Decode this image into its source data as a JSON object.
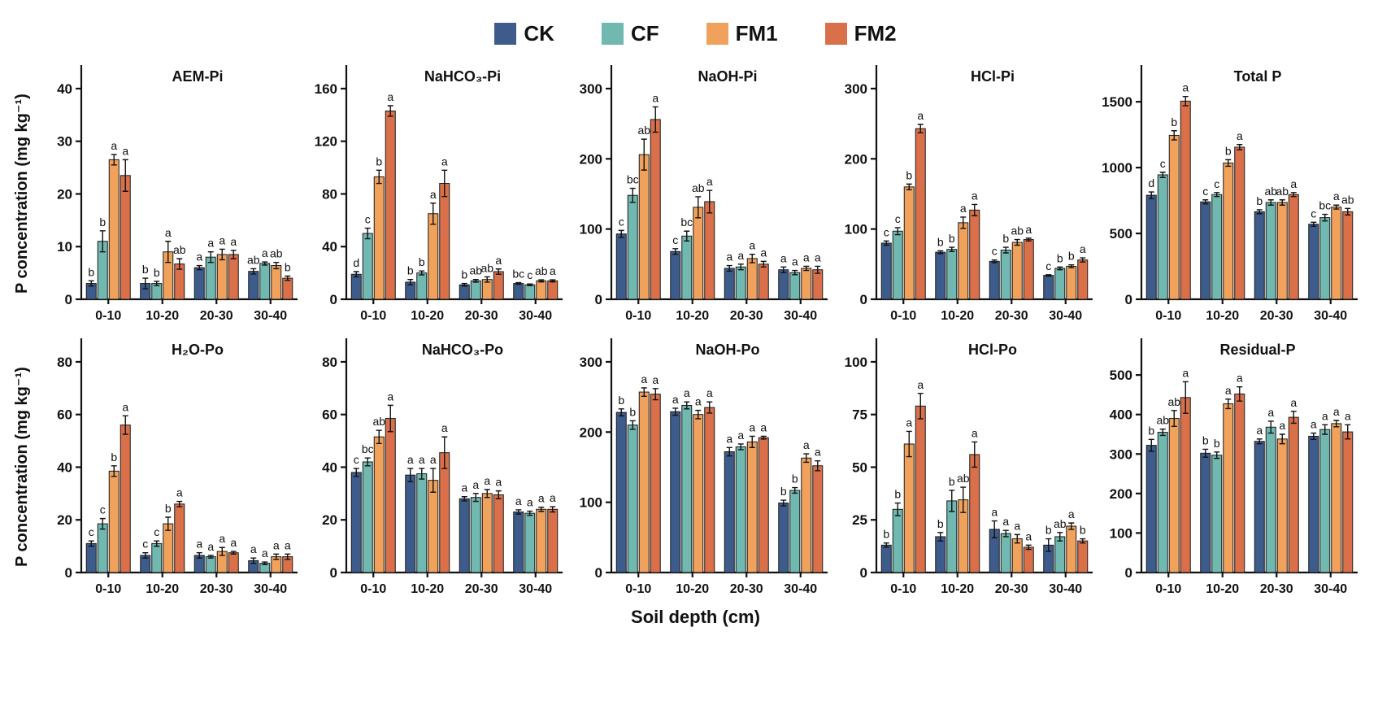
{
  "legend": {
    "items": [
      {
        "label": "CK",
        "color": "#3d5c8b"
      },
      {
        "label": "CF",
        "color": "#70b8b0"
      },
      {
        "label": "FM1",
        "color": "#f0a25c"
      },
      {
        "label": "FM2",
        "color": "#d9704a"
      }
    ]
  },
  "ylabel": "P concentration (mg kg⁻¹)",
  "xlabel": "Soil depth (cm)",
  "chart_data": [
    {
      "type": "bar",
      "title": "AEM-Pi",
      "row": 1,
      "categories": [
        "0-10",
        "10-20",
        "20-30",
        "30-40"
      ],
      "ylim": [
        0,
        42
      ],
      "yticks": [
        0,
        10,
        20,
        30,
        40
      ],
      "series": [
        {
          "name": "CK",
          "values": [
            3,
            3,
            6,
            5.3
          ],
          "errors": [
            0.5,
            1,
            0.4,
            0.5
          ],
          "letters": [
            "b",
            "b",
            "a",
            "ab"
          ]
        },
        {
          "name": "CF",
          "values": [
            11,
            3,
            8,
            6.8
          ],
          "errors": [
            2,
            0.4,
            1,
            0.3
          ],
          "letters": [
            "b",
            "b",
            "a",
            "a"
          ]
        },
        {
          "name": "FM1",
          "values": [
            26.5,
            9,
            8.5,
            6.4
          ],
          "errors": [
            1,
            2,
            1,
            0.6
          ],
          "letters": [
            "a",
            "a",
            "a",
            "ab"
          ]
        },
        {
          "name": "FM2",
          "values": [
            23.5,
            6.7,
            8.5,
            4
          ],
          "errors": [
            3,
            1,
            0.8,
            0.4
          ],
          "letters": [
            "a",
            "ab",
            "a",
            "b"
          ]
        }
      ]
    },
    {
      "type": "bar",
      "title": "NaHCO₃-Pi",
      "row": 1,
      "categories": [
        "0-10",
        "10-20",
        "20-30",
        "30-40"
      ],
      "ylim": [
        0,
        168
      ],
      "yticks": [
        0,
        40,
        80,
        120,
        160
      ],
      "series": [
        {
          "name": "CK",
          "values": [
            19,
            13,
            11,
            12
          ],
          "errors": [
            2,
            2,
            1,
            0.6
          ],
          "letters": [
            "d",
            "b",
            "b",
            "bc"
          ]
        },
        {
          "name": "CF",
          "values": [
            50,
            20,
            14,
            11
          ],
          "errors": [
            4,
            1.5,
            1,
            0.6
          ],
          "letters": [
            "c",
            "b",
            "ab",
            "c"
          ]
        },
        {
          "name": "FM1",
          "values": [
            93,
            65,
            15,
            14
          ],
          "errors": [
            5,
            8,
            2,
            0.8
          ],
          "letters": [
            "b",
            "a",
            "ab",
            "ab"
          ]
        },
        {
          "name": "FM2",
          "values": [
            143,
            88,
            21,
            14
          ],
          "errors": [
            4,
            10,
            2,
            0.8
          ],
          "letters": [
            "a",
            "a",
            "a",
            "a"
          ]
        }
      ]
    },
    {
      "type": "bar",
      "title": "NaOH-Pi",
      "row": 1,
      "categories": [
        "0-10",
        "10-20",
        "20-30",
        "30-40"
      ],
      "ylim": [
        0,
        315
      ],
      "yticks": [
        0,
        100,
        200,
        300
      ],
      "series": [
        {
          "name": "CK",
          "values": [
            93,
            68,
            44,
            42
          ],
          "errors": [
            5,
            4,
            4,
            4
          ],
          "letters": [
            "c",
            "c",
            "a",
            "a"
          ]
        },
        {
          "name": "CF",
          "values": [
            148,
            90,
            46,
            38
          ],
          "errors": [
            10,
            7,
            4,
            3
          ],
          "letters": [
            "bc",
            "bc",
            "a",
            "a"
          ]
        },
        {
          "name": "FM1",
          "values": [
            206,
            131,
            58,
            44
          ],
          "errors": [
            22,
            15,
            6,
            3
          ],
          "letters": [
            "ab",
            "ab",
            "a",
            "a"
          ]
        },
        {
          "name": "FM2",
          "values": [
            256,
            139,
            50,
            42
          ],
          "errors": [
            18,
            16,
            4,
            5
          ],
          "letters": [
            "a",
            "a",
            "a",
            "a"
          ]
        }
      ]
    },
    {
      "type": "bar",
      "title": "HCl-Pi",
      "row": 1,
      "categories": [
        "0-10",
        "10-20",
        "20-30",
        "30-40"
      ],
      "ylim": [
        0,
        315
      ],
      "yticks": [
        0,
        100,
        200,
        300
      ],
      "series": [
        {
          "name": "CK",
          "values": [
            80,
            67,
            54,
            34
          ],
          "errors": [
            3,
            2,
            2,
            1
          ],
          "letters": [
            "c",
            "b",
            "c",
            "c"
          ]
        },
        {
          "name": "CF",
          "values": [
            97,
            71,
            70,
            44
          ],
          "errors": [
            5,
            3,
            4,
            2
          ],
          "letters": [
            "c",
            "b",
            "b",
            "b"
          ]
        },
        {
          "name": "FM1",
          "values": [
            160,
            109,
            81,
            47
          ],
          "errors": [
            4,
            8,
            4,
            2
          ],
          "letters": [
            "b",
            "a",
            "ab",
            "b"
          ]
        },
        {
          "name": "FM2",
          "values": [
            243,
            127,
            85,
            56
          ],
          "errors": [
            6,
            8,
            2,
            3
          ],
          "letters": [
            "a",
            "a",
            "a",
            "a"
          ]
        }
      ]
    },
    {
      "type": "bar",
      "title": "Total P",
      "row": 1,
      "categories": [
        "0-10",
        "10-20",
        "20-30",
        "30-40"
      ],
      "ylim": [
        0,
        1680
      ],
      "yticks": [
        0,
        500,
        1000,
        1500
      ],
      "series": [
        {
          "name": "CK",
          "values": [
            790,
            740,
            665,
            570
          ],
          "errors": [
            25,
            15,
            15,
            15
          ],
          "letters": [
            "d",
            "c",
            "b",
            "c"
          ]
        },
        {
          "name": "CF",
          "values": [
            945,
            795,
            735,
            620
          ],
          "errors": [
            20,
            15,
            20,
            25
          ],
          "letters": [
            "c",
            "c",
            "ab",
            "bc"
          ]
        },
        {
          "name": "FM1",
          "values": [
            1245,
            1035,
            735,
            700
          ],
          "errors": [
            35,
            25,
            20,
            15
          ],
          "letters": [
            "b",
            "b",
            "ab",
            "a"
          ]
        },
        {
          "name": "FM2",
          "values": [
            1505,
            1155,
            795,
            665
          ],
          "errors": [
            35,
            20,
            15,
            25
          ],
          "letters": [
            "a",
            "a",
            "a",
            "ab"
          ]
        }
      ]
    },
    {
      "type": "bar",
      "title": "H₂O-Po",
      "row": 2,
      "categories": [
        "0-10",
        "10-20",
        "20-30",
        "30-40"
      ],
      "ylim": [
        0,
        84
      ],
      "yticks": [
        0,
        20,
        40,
        60,
        80
      ],
      "series": [
        {
          "name": "CK",
          "values": [
            11,
            6.5,
            6.5,
            4.5
          ],
          "errors": [
            1,
            1,
            1,
            1
          ],
          "letters": [
            "c",
            "c",
            "a",
            "a"
          ]
        },
        {
          "name": "CF",
          "values": [
            18.5,
            11,
            6,
            3.5
          ],
          "errors": [
            2,
            1,
            0.5,
            0.5
          ],
          "letters": [
            "c",
            "c",
            "a",
            "a"
          ]
        },
        {
          "name": "FM1",
          "values": [
            38.5,
            18.5,
            8,
            6
          ],
          "errors": [
            2,
            2.5,
            1.5,
            1
          ],
          "letters": [
            "b",
            "b",
            "a",
            "a"
          ]
        },
        {
          "name": "FM2",
          "values": [
            56,
            26,
            7.5,
            6
          ],
          "errors": [
            3.5,
            1,
            0.5,
            1
          ],
          "letters": [
            "a",
            "a",
            "a",
            "a"
          ]
        }
      ]
    },
    {
      "type": "bar",
      "title": "NaHCO₃-Po",
      "row": 2,
      "categories": [
        "0-10",
        "10-20",
        "20-30",
        "30-40"
      ],
      "ylim": [
        0,
        84
      ],
      "yticks": [
        0,
        20,
        40,
        60,
        80
      ],
      "series": [
        {
          "name": "CK",
          "values": [
            38,
            37,
            28,
            23
          ],
          "errors": [
            1.5,
            2.5,
            0.8,
            0.8
          ],
          "letters": [
            "c",
            "a",
            "a",
            "a"
          ]
        },
        {
          "name": "CF",
          "values": [
            42,
            37.5,
            28.5,
            22.5
          ],
          "errors": [
            1.5,
            2,
            1.5,
            0.8
          ],
          "letters": [
            "bc",
            "a",
            "a",
            "a"
          ]
        },
        {
          "name": "FM1",
          "values": [
            51.5,
            35,
            30,
            24
          ],
          "errors": [
            2.5,
            4.5,
            1.5,
            0.8
          ],
          "letters": [
            "ab",
            "a",
            "a",
            "a"
          ]
        },
        {
          "name": "FM2",
          "values": [
            58.5,
            45.5,
            29.5,
            24
          ],
          "errors": [
            5,
            6,
            1.5,
            1
          ],
          "letters": [
            "a",
            "a",
            "a",
            "a"
          ]
        }
      ]
    },
    {
      "type": "bar",
      "title": "NaOH-Po",
      "row": 2,
      "categories": [
        "0-10",
        "10-20",
        "20-30",
        "30-40"
      ],
      "ylim": [
        0,
        315
      ],
      "yticks": [
        0,
        100,
        200,
        300
      ],
      "series": [
        {
          "name": "CK",
          "values": [
            228,
            229,
            172,
            99
          ],
          "errors": [
            5,
            5,
            6,
            4
          ],
          "letters": [
            "b",
            "a",
            "a",
            "b"
          ]
        },
        {
          "name": "CF",
          "values": [
            210,
            238,
            179,
            117
          ],
          "errors": [
            6,
            5,
            4,
            4
          ],
          "letters": [
            "b",
            "a",
            "a",
            "b"
          ]
        },
        {
          "name": "FM1",
          "values": [
            257,
            225,
            186,
            163
          ],
          "errors": [
            6,
            6,
            8,
            6
          ],
          "letters": [
            "a",
            "a",
            "a",
            "a"
          ]
        },
        {
          "name": "FM2",
          "values": [
            254,
            235,
            192,
            152
          ],
          "errors": [
            8,
            8,
            2,
            7
          ],
          "letters": [
            "a",
            "a",
            "a",
            "a"
          ]
        }
      ]
    },
    {
      "type": "bar",
      "title": "HCl-Po",
      "row": 2,
      "categories": [
        "0-10",
        "10-20",
        "20-30",
        "30-40"
      ],
      "ylim": [
        0,
        105
      ],
      "yticks": [
        0,
        25,
        50,
        75,
        100
      ],
      "series": [
        {
          "name": "CK",
          "values": [
            13,
            17,
            20.5,
            13
          ],
          "errors": [
            1,
            2,
            4,
            3
          ],
          "letters": [
            "b",
            "b",
            "a",
            "b"
          ]
        },
        {
          "name": "CF",
          "values": [
            30,
            34,
            18.5,
            17
          ],
          "errors": [
            3,
            5,
            1.5,
            2
          ],
          "letters": [
            "b",
            "b",
            "a",
            "ab"
          ]
        },
        {
          "name": "FM1",
          "values": [
            61,
            34.5,
            16,
            22
          ],
          "errors": [
            6,
            6,
            2,
            1.5
          ],
          "letters": [
            "a",
            "ab",
            "a",
            "a"
          ]
        },
        {
          "name": "FM2",
          "values": [
            79,
            56,
            12,
            15
          ],
          "errors": [
            6,
            6,
            1,
            1
          ],
          "letters": [
            "a",
            "a",
            "a",
            "b"
          ]
        }
      ]
    },
    {
      "type": "bar",
      "title": "Residual-P",
      "row": 2,
      "categories": [
        "0-10",
        "10-20",
        "20-30",
        "30-40"
      ],
      "ylim": [
        0,
        560
      ],
      "yticks": [
        0,
        100,
        200,
        300,
        400,
        500
      ],
      "series": [
        {
          "name": "CK",
          "values": [
            322,
            302,
            332,
            345
          ],
          "errors": [
            15,
            10,
            6,
            8
          ],
          "letters": [
            "b",
            "b",
            "a",
            "a"
          ]
        },
        {
          "name": "CF",
          "values": [
            355,
            297,
            368,
            362
          ],
          "errors": [
            8,
            8,
            15,
            12
          ],
          "letters": [
            "ab",
            "b",
            "a",
            "a"
          ]
        },
        {
          "name": "FM1",
          "values": [
            390,
            427,
            338,
            377
          ],
          "errors": [
            20,
            12,
            12,
            8
          ],
          "letters": [
            "ab",
            "a",
            "a",
            "a"
          ]
        },
        {
          "name": "FM2",
          "values": [
            443,
            452,
            393,
            356
          ],
          "errors": [
            40,
            18,
            15,
            18
          ],
          "letters": [
            "a",
            "a",
            "a",
            "a"
          ]
        }
      ]
    }
  ]
}
